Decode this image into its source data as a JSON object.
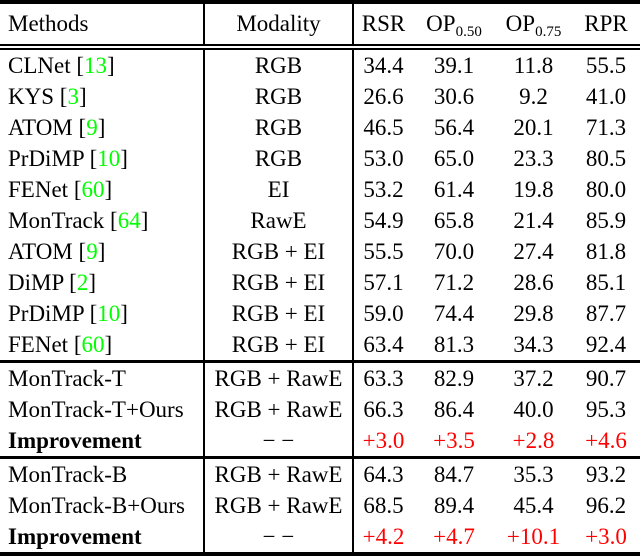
{
  "table": {
    "header": {
      "methods": "Methods",
      "modality": "Modality",
      "metrics": [
        {
          "label": "RSR",
          "sub": ""
        },
        {
          "label": "OP",
          "sub": "0.50"
        },
        {
          "label": "OP",
          "sub": "0.75"
        },
        {
          "label": "RPR",
          "sub": ""
        }
      ]
    },
    "colors": {
      "citation_green": "#00ff00",
      "improvement_red": "#ff0000",
      "rule_black": "#000000"
    },
    "groups": [
      {
        "rows": [
          {
            "method": "CLNet",
            "cite": "13",
            "modality": "RGB",
            "values": [
              "34.4",
              "39.1",
              "11.8",
              "55.5"
            ],
            "bold": false,
            "red": false
          },
          {
            "method": "KYS",
            "cite": "3",
            "modality": "RGB",
            "values": [
              "26.6",
              "30.6",
              "9.2",
              "41.0"
            ],
            "bold": false,
            "red": false
          },
          {
            "method": "ATOM",
            "cite": "9",
            "modality": "RGB",
            "values": [
              "46.5",
              "56.4",
              "20.1",
              "71.3"
            ],
            "bold": false,
            "red": false
          },
          {
            "method": "PrDiMP",
            "cite": "10",
            "modality": "RGB",
            "values": [
              "53.0",
              "65.0",
              "23.3",
              "80.5"
            ],
            "bold": false,
            "red": false
          },
          {
            "method": "FENet",
            "cite": "60",
            "modality": "EI",
            "values": [
              "53.2",
              "61.4",
              "19.8",
              "80.0"
            ],
            "bold": false,
            "red": false
          },
          {
            "method": "MonTrack",
            "cite": "64",
            "modality": "RawE",
            "values": [
              "54.9",
              "65.8",
              "21.4",
              "85.9"
            ],
            "bold": false,
            "red": false
          },
          {
            "method": "ATOM",
            "cite": "9",
            "modality": "RGB + EI",
            "values": [
              "55.5",
              "70.0",
              "27.4",
              "81.8"
            ],
            "bold": false,
            "red": false
          },
          {
            "method": "DiMP",
            "cite": "2",
            "modality": "RGB + EI",
            "values": [
              "57.1",
              "71.2",
              "28.6",
              "85.1"
            ],
            "bold": false,
            "red": false
          },
          {
            "method": "PrDiMP",
            "cite": "10",
            "modality": "RGB + EI",
            "values": [
              "59.0",
              "74.4",
              "29.8",
              "87.7"
            ],
            "bold": false,
            "red": false
          },
          {
            "method": "FENet",
            "cite": "60",
            "modality": "RGB + EI",
            "values": [
              "63.4",
              "81.3",
              "34.3",
              "92.4"
            ],
            "bold": false,
            "red": false
          }
        ]
      },
      {
        "rows": [
          {
            "method": "MonTrack-T",
            "cite": "",
            "modality": "RGB + RawE",
            "values": [
              "63.3",
              "82.9",
              "37.2",
              "90.7"
            ],
            "bold": false,
            "red": false
          },
          {
            "method": "MonTrack-T+Ours",
            "cite": "",
            "modality": "RGB + RawE",
            "values": [
              "66.3",
              "86.4",
              "40.0",
              "95.3"
            ],
            "bold": false,
            "red": false
          },
          {
            "method": "Improvement",
            "cite": "",
            "modality": "− −",
            "values": [
              "+3.0",
              "+3.5",
              "+2.8",
              "+4.6"
            ],
            "bold": true,
            "red": true
          }
        ]
      },
      {
        "rows": [
          {
            "method": "MonTrack-B",
            "cite": "",
            "modality": "RGB + RawE",
            "values": [
              "64.3",
              "84.7",
              "35.3",
              "93.2"
            ],
            "bold": false,
            "red": false
          },
          {
            "method": "MonTrack-B+Ours",
            "cite": "",
            "modality": "RGB + RawE",
            "values": [
              "68.5",
              "89.4",
              "45.4",
              "96.2"
            ],
            "bold": false,
            "red": false
          },
          {
            "method": "Improvement",
            "cite": "",
            "modality": "− −",
            "values": [
              "+4.2",
              "+4.7",
              "+10.1",
              "+3.0"
            ],
            "bold": true,
            "red": true
          }
        ]
      }
    ]
  }
}
